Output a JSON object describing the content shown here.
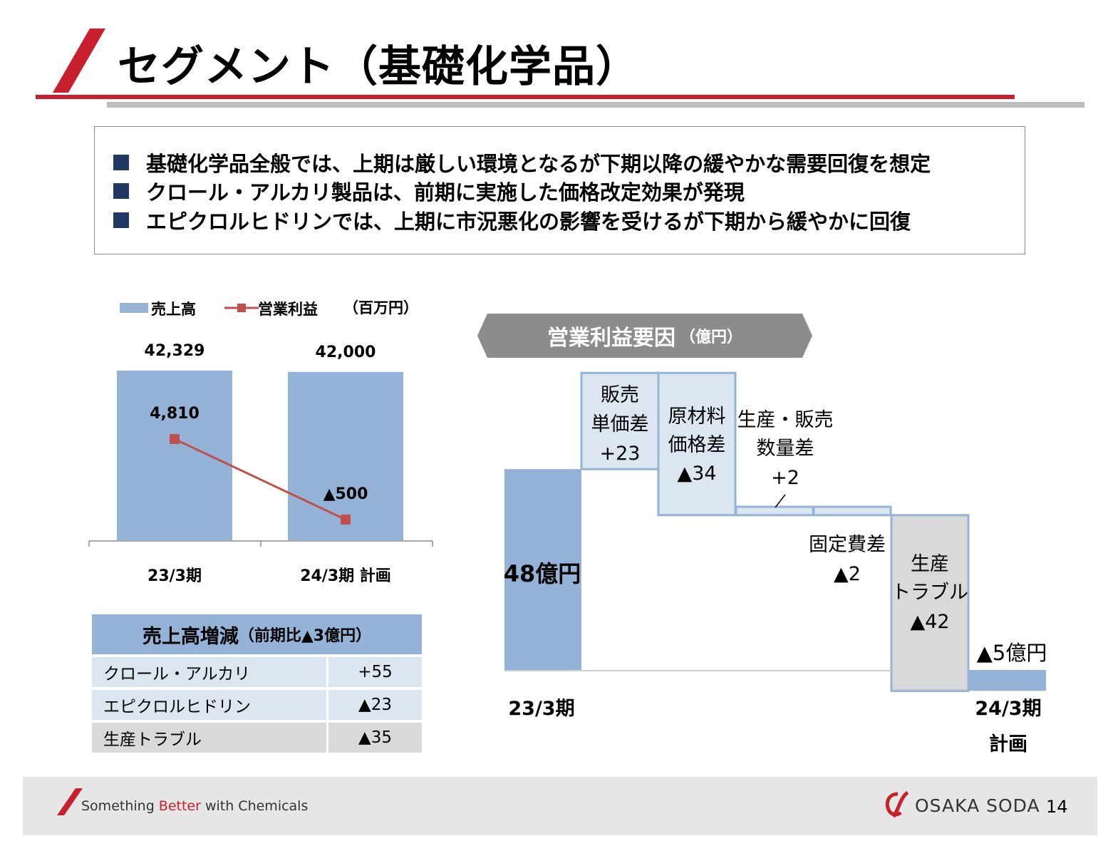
{
  "header": {
    "title": "セグメント（基礎化学品）",
    "accent_color": "#c8202f"
  },
  "summary": {
    "bullets": [
      "基礎化学品全般では、上期は厳しい環境となるが下期以降の緩やかな需要回復を想定",
      "クロール・アルカリ製品は、前期に実施した価格改定効果が発現",
      "エピクロルヒドリンでは、上期に市況悪化の影響を受けるが下期から緩やかに回復"
    ]
  },
  "chart_data": [
    {
      "type": "bar",
      "categories": [
        "23/3期",
        "24/3期 計画"
      ],
      "series": [
        {
          "name": "売上高",
          "type": "bar",
          "values": [
            42329,
            42000
          ],
          "labels": [
            "42,329",
            "42,000"
          ],
          "color": "#95b3d7"
        },
        {
          "name": "営業利益",
          "type": "line",
          "values": [
            4810,
            -500
          ],
          "labels": [
            "4,810",
            "▲500"
          ],
          "color": "#c0504d"
        }
      ],
      "unit_label": "（百万円）"
    },
    {
      "type": "bar",
      "subtype": "waterfall",
      "title": "営業利益要因",
      "title_unit": "（億円）",
      "steps": [
        {
          "name": "23/3期",
          "value": 48,
          "kind": "total",
          "label": "48億円"
        },
        {
          "name": "販売単価差",
          "value": 23,
          "kind": "delta",
          "label_lines": [
            "販売",
            "単価差",
            "+23"
          ]
        },
        {
          "name": "原材料価格差",
          "value": -34,
          "kind": "delta",
          "label_lines": [
            "原材料",
            "価格差",
            "▲34"
          ]
        },
        {
          "name": "生産・販売数量差",
          "value": 2,
          "kind": "delta",
          "label_lines": [
            "生産・販売",
            "数量差",
            "+2"
          ]
        },
        {
          "name": "固定費差",
          "value": -2,
          "kind": "delta",
          "label_lines": [
            "固定費差",
            "▲2"
          ]
        },
        {
          "name": "生産トラブル",
          "value": -42,
          "kind": "delta",
          "label_lines": [
            "生産",
            "トラブル",
            "▲42"
          ]
        },
        {
          "name": "24/3期 計画",
          "value": -5,
          "kind": "total",
          "label": "▲5億円"
        }
      ],
      "x_labels": {
        "start": "23/3期",
        "end_line1": "24/3期",
        "end_line2": "計画"
      }
    }
  ],
  "sales_table": {
    "title": "売上高増減",
    "title_note": "（前期比▲3億円）",
    "rows": [
      {
        "name": "クロール・アルカリ",
        "value": "+55"
      },
      {
        "name": "エピクロルヒドリン",
        "value": "▲23"
      },
      {
        "name": "生産トラブル",
        "value": "▲35"
      }
    ]
  },
  "footer": {
    "tagline_1": "Something ",
    "tagline_2": "Better",
    "tagline_3": " with Chemicals",
    "brand": "OSAKA SODA",
    "page_number": "14"
  }
}
